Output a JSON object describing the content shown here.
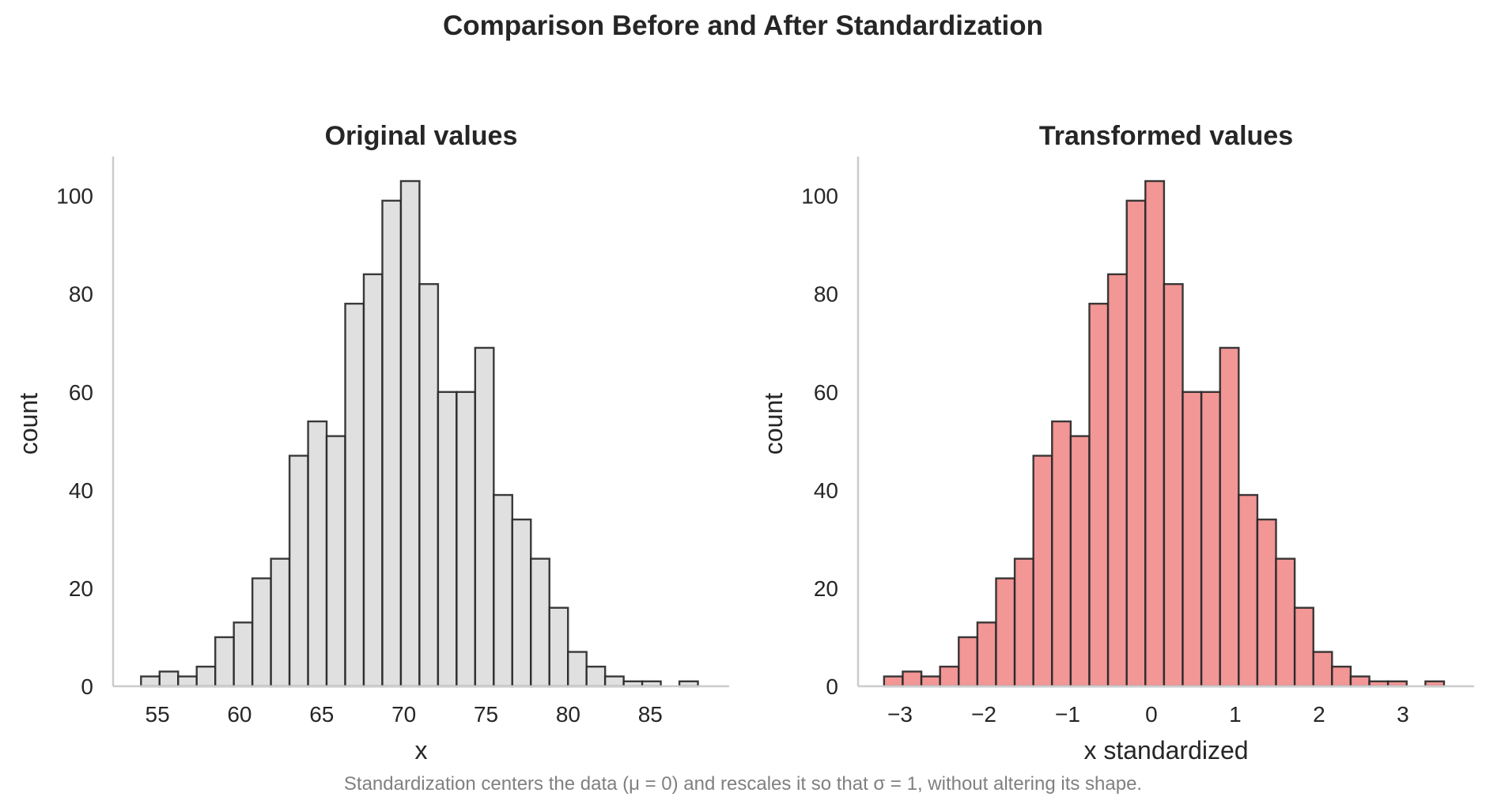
{
  "figure": {
    "suptitle": "Comparison Before and After Standardization",
    "caption": "Standardization centers the data (μ = 0) and rescales it so that σ = 1, without altering its shape."
  },
  "chart_data": [
    {
      "type": "bar",
      "histogram": true,
      "title": "Original values",
      "xlabel": "x",
      "ylabel": "count",
      "color": "#e0e0e0",
      "edge_color": "#262626",
      "xlim": [
        52.3,
        89.8
      ],
      "ylim": [
        0,
        108
      ],
      "xticks": [
        55,
        60,
        65,
        70,
        75,
        80,
        85
      ],
      "xtick_labels": [
        "55",
        "60",
        "65",
        "70",
        "75",
        "80",
        "85"
      ],
      "yticks": [
        0,
        20,
        40,
        60,
        80,
        100
      ],
      "ytick_labels": [
        "0",
        "20",
        "40",
        "60",
        "80",
        "100"
      ],
      "grid": false,
      "bin_edges": [
        54.0,
        55.13,
        56.26,
        57.39,
        58.52,
        59.65,
        60.78,
        61.91,
        63.04,
        64.17,
        65.3,
        66.43,
        67.56,
        68.69,
        69.82,
        70.95,
        72.08,
        73.21,
        74.34,
        75.47,
        76.6,
        77.73,
        78.86,
        79.99,
        81.12,
        82.25,
        83.38,
        84.51,
        85.64,
        86.77,
        87.9
      ],
      "counts": [
        2,
        3,
        2,
        4,
        10,
        13,
        22,
        26,
        47,
        54,
        51,
        78,
        84,
        99,
        103,
        82,
        60,
        60,
        69,
        39,
        34,
        26,
        16,
        7,
        4,
        2,
        1,
        1,
        0,
        1
      ]
    },
    {
      "type": "bar",
      "histogram": true,
      "title": "Transformed values",
      "xlabel": "x standardized",
      "ylabel": "count",
      "color": "#f29696",
      "edge_color": "#262626",
      "xlim": [
        -3.5,
        3.85
      ],
      "ylim": [
        0,
        108
      ],
      "xticks": [
        -3,
        -2,
        -1,
        0,
        1,
        2,
        3
      ],
      "xtick_labels": [
        "−3",
        "−2",
        "−1",
        "0",
        "1",
        "2",
        "3"
      ],
      "yticks": [
        0,
        20,
        40,
        60,
        80,
        100
      ],
      "ytick_labels": [
        "0",
        "20",
        "40",
        "60",
        "80",
        "100"
      ],
      "grid": false,
      "bin_edges": [
        -3.19,
        -2.9673,
        -2.7446,
        -2.5219,
        -2.2992,
        -2.0765,
        -1.8538,
        -1.6311,
        -1.4084,
        -1.1857,
        -0.963,
        -0.7403,
        -0.5176,
        -0.2949,
        -0.0722,
        0.1505,
        0.3732,
        0.5959,
        0.8186,
        1.0413,
        1.264,
        1.4867,
        1.7094,
        1.9321,
        2.1548,
        2.3775,
        2.6002,
        2.8229,
        3.0456,
        3.2683,
        3.491
      ],
      "counts": [
        2,
        3,
        2,
        4,
        10,
        13,
        22,
        26,
        47,
        54,
        51,
        78,
        84,
        99,
        103,
        82,
        60,
        60,
        69,
        39,
        34,
        26,
        16,
        7,
        4,
        2,
        1,
        1,
        0,
        1
      ]
    }
  ]
}
